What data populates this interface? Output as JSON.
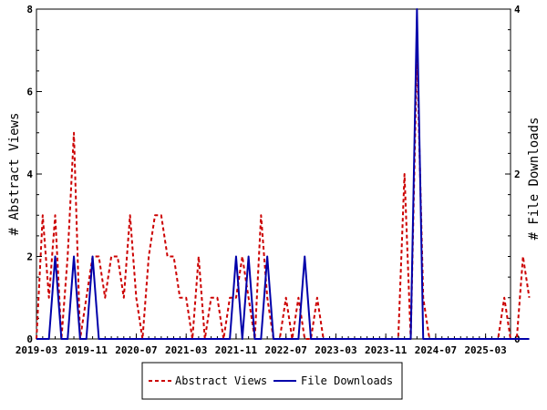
{
  "chart_data": {
    "type": "line",
    "title": "",
    "xlabel": "",
    "ylabel": "# Abstract Views",
    "y2label": "# File Downloads",
    "x_tick_labels": [
      "2019-03",
      "2019-11",
      "2020-07",
      "2021-03",
      "2021-11",
      "2022-07",
      "2023-03",
      "2023-11",
      "2024-07",
      "2025-03"
    ],
    "x_range": [
      "2019-03",
      "2025-07"
    ],
    "ylim": [
      0,
      8
    ],
    "y_ticks": [
      0,
      2,
      4,
      6,
      8
    ],
    "y2lim": [
      0,
      4
    ],
    "y2_ticks": [
      0,
      2,
      4
    ],
    "grid": false,
    "legend_position": "bottom-center",
    "series": [
      {
        "name": "Abstract Views",
        "axis": "left",
        "color": "#cc0000",
        "style": "dashed",
        "points": [
          [
            "2019-03",
            0
          ],
          [
            "2019-04",
            3
          ],
          [
            "2019-05",
            1
          ],
          [
            "2019-06",
            3
          ],
          [
            "2019-07",
            0
          ],
          [
            "2019-08",
            2
          ],
          [
            "2019-09",
            5
          ],
          [
            "2019-10",
            0
          ],
          [
            "2019-11",
            1
          ],
          [
            "2019-12",
            2
          ],
          [
            "2020-01",
            2
          ],
          [
            "2020-02",
            1
          ],
          [
            "2020-03",
            2
          ],
          [
            "2020-04",
            2
          ],
          [
            "2020-05",
            1
          ],
          [
            "2020-06",
            3
          ],
          [
            "2020-07",
            1
          ],
          [
            "2020-08",
            0
          ],
          [
            "2020-09",
            2
          ],
          [
            "2020-10",
            3
          ],
          [
            "2020-11",
            3
          ],
          [
            "2020-12",
            2
          ],
          [
            "2021-01",
            2
          ],
          [
            "2021-02",
            1
          ],
          [
            "2021-03",
            1
          ],
          [
            "2021-04",
            0
          ],
          [
            "2021-05",
            2
          ],
          [
            "2021-06",
            0
          ],
          [
            "2021-07",
            1
          ],
          [
            "2021-08",
            1
          ],
          [
            "2021-09",
            0
          ],
          [
            "2021-10",
            1
          ],
          [
            "2021-11",
            1
          ],
          [
            "2021-12",
            2
          ],
          [
            "2022-01",
            1
          ],
          [
            "2022-02",
            0
          ],
          [
            "2022-03",
            3
          ],
          [
            "2022-04",
            1
          ],
          [
            "2022-05",
            0
          ],
          [
            "2022-06",
            0
          ],
          [
            "2022-07",
            1
          ],
          [
            "2022-08",
            0
          ],
          [
            "2022-09",
            1
          ],
          [
            "2022-10",
            0
          ],
          [
            "2022-11",
            0
          ],
          [
            "2022-12",
            1
          ],
          [
            "2023-01",
            0
          ],
          [
            "2023-02",
            0
          ],
          [
            "2023-03",
            0
          ],
          [
            "2023-04",
            0
          ],
          [
            "2023-05",
            0
          ],
          [
            "2023-06",
            0
          ],
          [
            "2023-07",
            0
          ],
          [
            "2023-08",
            0
          ],
          [
            "2023-09",
            0
          ],
          [
            "2023-10",
            0
          ],
          [
            "2023-11",
            0
          ],
          [
            "2023-12",
            0
          ],
          [
            "2024-01",
            0
          ],
          [
            "2024-02",
            4
          ],
          [
            "2024-03",
            0
          ],
          [
            "2024-04",
            7
          ],
          [
            "2024-05",
            1
          ],
          [
            "2024-06",
            0
          ],
          [
            "2024-07",
            0
          ],
          [
            "2024-08",
            0
          ],
          [
            "2024-09",
            0
          ],
          [
            "2024-10",
            0
          ],
          [
            "2024-11",
            0
          ],
          [
            "2024-12",
            0
          ],
          [
            "2025-01",
            0
          ],
          [
            "2025-02",
            0
          ],
          [
            "2025-03",
            0
          ],
          [
            "2025-04",
            0
          ],
          [
            "2025-05",
            0
          ],
          [
            "2025-06",
            1
          ],
          [
            "2025-07",
            0
          ],
          [
            "2025-08",
            0
          ],
          [
            "2025-09",
            2
          ],
          [
            "2025-10",
            1
          ]
        ]
      },
      {
        "name": "File Downloads",
        "axis": "right",
        "color": "#0000aa",
        "style": "solid",
        "points": [
          [
            "2019-03",
            0
          ],
          [
            "2019-04",
            0
          ],
          [
            "2019-05",
            0
          ],
          [
            "2019-06",
            1
          ],
          [
            "2019-07",
            0
          ],
          [
            "2019-08",
            0
          ],
          [
            "2019-09",
            1
          ],
          [
            "2019-10",
            0
          ],
          [
            "2019-11",
            0
          ],
          [
            "2019-12",
            1
          ],
          [
            "2020-01",
            0
          ],
          [
            "2020-02",
            0
          ],
          [
            "2020-03",
            0
          ],
          [
            "2020-04",
            0
          ],
          [
            "2020-05",
            0
          ],
          [
            "2020-06",
            0
          ],
          [
            "2020-07",
            0
          ],
          [
            "2020-08",
            0
          ],
          [
            "2020-09",
            0
          ],
          [
            "2020-10",
            0
          ],
          [
            "2020-11",
            0
          ],
          [
            "2020-12",
            0
          ],
          [
            "2021-01",
            0
          ],
          [
            "2021-02",
            0
          ],
          [
            "2021-03",
            0
          ],
          [
            "2021-04",
            0
          ],
          [
            "2021-05",
            0
          ],
          [
            "2021-06",
            0
          ],
          [
            "2021-07",
            0
          ],
          [
            "2021-08",
            0
          ],
          [
            "2021-09",
            0
          ],
          [
            "2021-10",
            0
          ],
          [
            "2021-11",
            1
          ],
          [
            "2021-12",
            0
          ],
          [
            "2022-01",
            1
          ],
          [
            "2022-02",
            0
          ],
          [
            "2022-03",
            0
          ],
          [
            "2022-04",
            1
          ],
          [
            "2022-05",
            0
          ],
          [
            "2022-06",
            0
          ],
          [
            "2022-07",
            0
          ],
          [
            "2022-08",
            0
          ],
          [
            "2022-09",
            0
          ],
          [
            "2022-10",
            1
          ],
          [
            "2022-11",
            0
          ],
          [
            "2022-12",
            0
          ],
          [
            "2023-01",
            0
          ],
          [
            "2023-02",
            0
          ],
          [
            "2023-03",
            0
          ],
          [
            "2023-04",
            0
          ],
          [
            "2023-05",
            0
          ],
          [
            "2023-06",
            0
          ],
          [
            "2023-07",
            0
          ],
          [
            "2023-08",
            0
          ],
          [
            "2023-09",
            0
          ],
          [
            "2023-10",
            0
          ],
          [
            "2023-11",
            0
          ],
          [
            "2023-12",
            0
          ],
          [
            "2024-01",
            0
          ],
          [
            "2024-02",
            0
          ],
          [
            "2024-03",
            0
          ],
          [
            "2024-04",
            4
          ],
          [
            "2024-05",
            0
          ],
          [
            "2024-06",
            0
          ],
          [
            "2024-07",
            0
          ],
          [
            "2024-08",
            0
          ],
          [
            "2024-09",
            0
          ],
          [
            "2024-10",
            0
          ],
          [
            "2024-11",
            0
          ],
          [
            "2024-12",
            0
          ],
          [
            "2025-01",
            0
          ],
          [
            "2025-02",
            0
          ],
          [
            "2025-03",
            0
          ],
          [
            "2025-04",
            0
          ],
          [
            "2025-05",
            0
          ],
          [
            "2025-06",
            0
          ],
          [
            "2025-07",
            0
          ],
          [
            "2025-08",
            0
          ],
          [
            "2025-09",
            0
          ],
          [
            "2025-10",
            0
          ]
        ]
      }
    ]
  }
}
